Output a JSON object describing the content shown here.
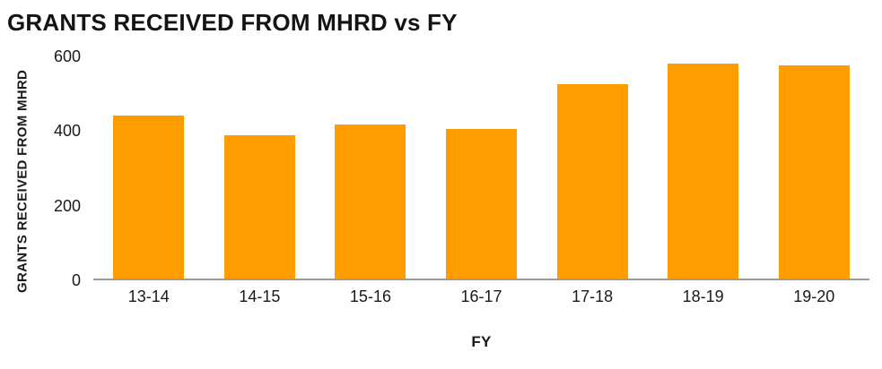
{
  "chart_data": {
    "type": "bar",
    "title": "GRANTS RECEIVED FROM MHRD vs FY",
    "xlabel": "FY",
    "ylabel": "GRANTS RECEIVED FROM MHRD",
    "categories": [
      "13-14",
      "14-15",
      "15-16",
      "16-17",
      "17-18",
      "18-19",
      "19-20"
    ],
    "values": [
      440,
      388,
      416,
      404,
      526,
      580,
      575
    ],
    "ylim": [
      0,
      600
    ],
    "yticks": [
      0,
      200,
      400,
      600
    ],
    "grid": false,
    "legend": false,
    "bar_color": "#FF9D00",
    "axis_color": "#9b9b9b"
  }
}
